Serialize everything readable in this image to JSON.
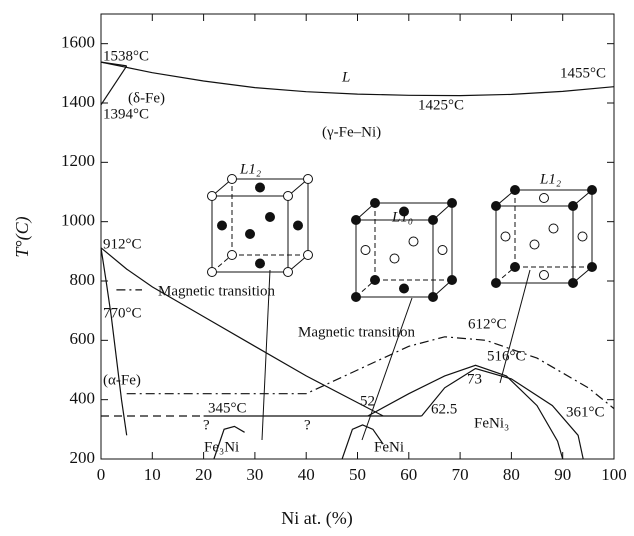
{
  "chart_data": {
    "type": "line",
    "x_label": "Ni at. (%)",
    "y_label": "T°(C)",
    "xlim": [
      0,
      100
    ],
    "ylim": [
      200,
      1700
    ],
    "xticks": [
      0,
      10,
      20,
      30,
      40,
      50,
      60,
      70,
      80,
      90,
      100
    ],
    "yticks": [
      200,
      400,
      600,
      800,
      1000,
      1200,
      1400,
      1600
    ],
    "color": "#111111",
    "curves": [
      {
        "style": "solid",
        "x": [
          0,
          10,
          20,
          30,
          40,
          50,
          60,
          70,
          80,
          90,
          100
        ],
        "y": [
          1538,
          1502,
          1474,
          1452,
          1438,
          1430,
          1426,
          1425,
          1429,
          1439,
          1455
        ]
      },
      {
        "style": "solid",
        "x": [
          0,
          5
        ],
        "y": [
          1394,
          1525
        ]
      },
      {
        "style": "solid",
        "x": [
          0,
          5
        ],
        "y": [
          1538,
          1525
        ]
      },
      {
        "style": "solid",
        "x": [
          0,
          5,
          10,
          20,
          30,
          40,
          50,
          55
        ],
        "y": [
          912,
          840,
          780,
          680,
          580,
          480,
          390,
          345
        ]
      },
      {
        "style": "solid",
        "x": [
          0,
          1,
          2,
          3,
          4,
          5
        ],
        "y": [
          912,
          800,
          680,
          540,
          400,
          280
        ]
      },
      {
        "style": "dashdot",
        "x": [
          3,
          8
        ],
        "y": [
          770,
          770
        ]
      },
      {
        "style": "dashdot",
        "x": [
          5,
          40,
          50,
          60,
          67,
          75,
          85,
          95,
          100
        ],
        "y": [
          420,
          420,
          500,
          580,
          612,
          600,
          540,
          440,
          370
        ]
      },
      {
        "style": "dashed",
        "x": [
          0,
          20
        ],
        "y": [
          345,
          345
        ]
      },
      {
        "style": "solid",
        "x": [
          20,
          62.5
        ],
        "y": [
          345,
          345
        ]
      },
      {
        "style": "solid",
        "x": [
          52,
          60,
          67,
          73,
          79,
          85,
          89,
          90
        ],
        "y": [
          345,
          420,
          480,
          516,
          480,
          380,
          260,
          200
        ]
      },
      {
        "style": "solid",
        "x": [
          62.5,
          67,
          73,
          80,
          88,
          93,
          94
        ],
        "y": [
          345,
          440,
          505,
          470,
          380,
          280,
          200
        ]
      },
      {
        "style": "solid",
        "x": [
          22,
          24,
          26,
          28
        ],
        "y": [
          200,
          300,
          310,
          290
        ]
      },
      {
        "style": "solid",
        "x": [
          47,
          49,
          51,
          53,
          55
        ],
        "y": [
          200,
          300,
          315,
          300,
          250
        ]
      }
    ],
    "annotations": [
      "1538°C",
      "1455°C",
      "L",
      "1425°C",
      "(δ-Fe)",
      "1394°C",
      "(γ-Fe–Ni)",
      "L1₂",
      "L1₀",
      "L1₂",
      "912°C",
      "770°C",
      "Magnetic transition",
      "Magnetic transition",
      "612°C",
      "516°C",
      "(α-Fe)",
      "345°C",
      "52",
      "73",
      "62.5",
      "FeNi₃",
      "361°C",
      "?",
      "?",
      "Fe₃Ni",
      "FeNi"
    ]
  }
}
